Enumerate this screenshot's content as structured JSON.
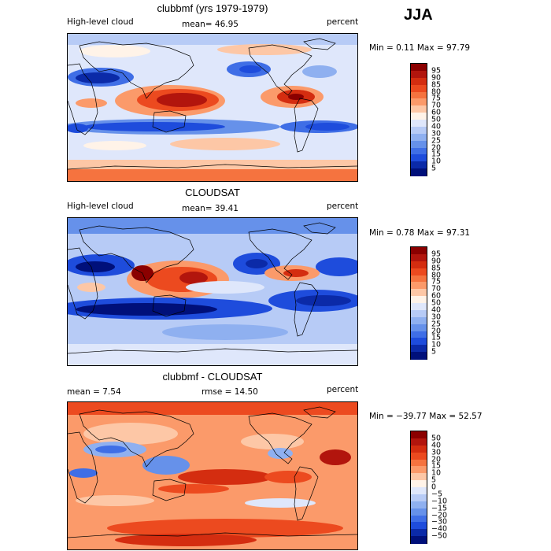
{
  "season": "JJA",
  "panels": [
    {
      "title": "clubbmf (yrs 1979-1979)",
      "left_label": "High-level cloud",
      "stat_text": "mean=  46.95",
      "units": "percent",
      "minmax": "Min =   0.11 Max =  97.79",
      "kind": "model"
    },
    {
      "title": "CLOUDSAT",
      "left_label": "High-level cloud",
      "stat_text": "mean=  39.41",
      "units": "percent",
      "minmax": "Min =   0.78 Max =  97.31",
      "kind": "obs"
    },
    {
      "title": "clubbmf - CLOUDSAT",
      "left_label": "mean =     7.54",
      "stat_text": "rmse =   14.50",
      "units": "percent",
      "minmax": "Min = −39.77 Max =  52.57",
      "kind": "diff"
    }
  ],
  "colorbars": [
    {
      "levels": [
        "95",
        "90",
        "85",
        "80",
        "75",
        "70",
        "60",
        "50",
        "40",
        "30",
        "25",
        "20",
        "15",
        "10",
        "5"
      ],
      "colors": [
        "#8b0000",
        "#b2150d",
        "#d42d10",
        "#ec4a1f",
        "#f5733f",
        "#fb9a6a",
        "#fdc7a6",
        "#fff3e8",
        "#dfe7fb",
        "#b7cbf6",
        "#8fb0f0",
        "#6691ea",
        "#3f6ee6",
        "#1e4cdc",
        "#0b2aa8",
        "#00107a"
      ]
    },
    {
      "levels": [
        "95",
        "90",
        "85",
        "80",
        "75",
        "70",
        "60",
        "50",
        "40",
        "30",
        "25",
        "20",
        "15",
        "10",
        "5"
      ],
      "colors": [
        "#8b0000",
        "#b2150d",
        "#d42d10",
        "#ec4a1f",
        "#f5733f",
        "#fb9a6a",
        "#fdc7a6",
        "#fff3e8",
        "#dfe7fb",
        "#b7cbf6",
        "#8fb0f0",
        "#6691ea",
        "#3f6ee6",
        "#1e4cdc",
        "#0b2aa8",
        "#00107a"
      ]
    },
    {
      "levels": [
        "50",
        "40",
        "30",
        "20",
        "15",
        "10",
        "5",
        "0",
        "−5",
        "−10",
        "−15",
        "−20",
        "−30",
        "−40",
        "−50"
      ],
      "colors": [
        "#8b0000",
        "#b2150d",
        "#d42d10",
        "#ec4a1f",
        "#f5733f",
        "#fb9a6a",
        "#fdc7a6",
        "#fff3e8",
        "#dfe7fb",
        "#b7cbf6",
        "#8fb0f0",
        "#6691ea",
        "#3f6ee6",
        "#1e4cdc",
        "#0b2aa8",
        "#00107a"
      ]
    }
  ]
}
